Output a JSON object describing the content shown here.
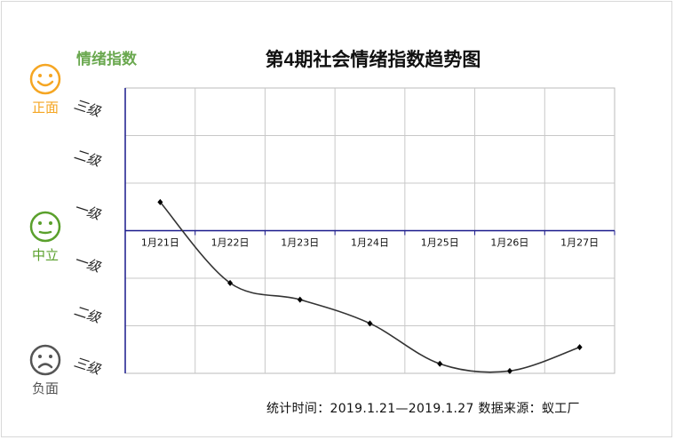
{
  "y_title": "情绪指数",
  "chart_title_prefix": "第",
  "chart_title_num": "4",
  "chart_title_suffix": "期社会情绪指数趋势图",
  "faces": {
    "positive": {
      "label": "正面",
      "color": "#f5a623"
    },
    "neutral": {
      "label": "中立",
      "color": "#5aa02c"
    },
    "negative": {
      "label": "负面",
      "color": "#555555"
    }
  },
  "y_levels": [
    "三级",
    "二级",
    "一级",
    "一级",
    "二级",
    "三级"
  ],
  "source_text": "统计时间：2019.1.21—2019.1.27  数据来源：蚁工厂",
  "chart_data": {
    "type": "line",
    "title": "第4期社会情绪指数趋势图",
    "ylabel": "情绪指数",
    "categories": [
      "1月21日",
      "1月22日",
      "1月23日",
      "1月24日",
      "1月25日",
      "1月26日",
      "1月27日"
    ],
    "values": [
      0.6,
      -1.1,
      -1.45,
      -1.95,
      -2.8,
      -2.95,
      -2.45
    ],
    "ylim": [
      -3,
      3
    ],
    "grid": true,
    "axis_color": "#1a1a8c",
    "line_color": "#333333"
  }
}
